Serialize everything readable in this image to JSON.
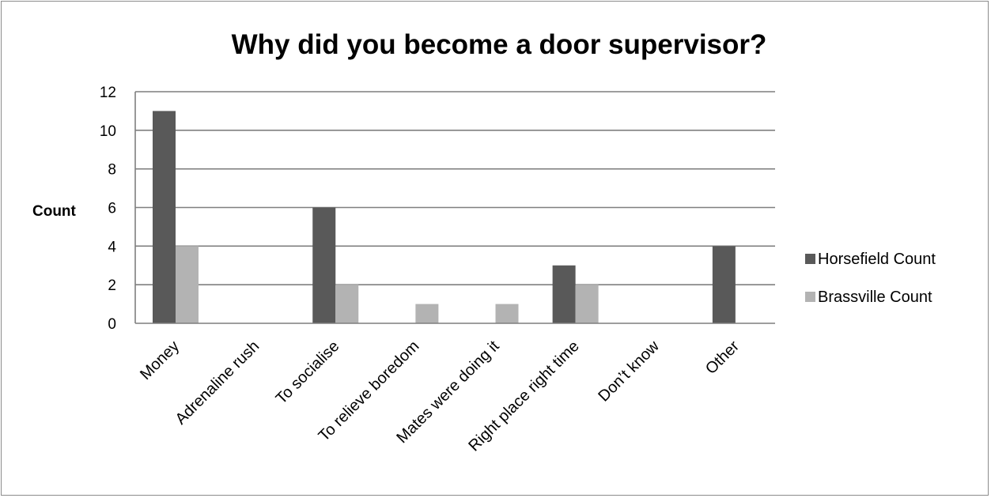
{
  "chart_data": {
    "type": "bar",
    "title": "Why did you become a door supervisor?",
    "xlabel": "",
    "ylabel": "Count",
    "ylim": [
      0,
      12
    ],
    "yticks": [
      0,
      2,
      4,
      6,
      8,
      10,
      12
    ],
    "grid": true,
    "legend_position": "right",
    "categories": [
      "Money",
      "Adrenaline rush",
      "To socialise",
      "To relieve boredom",
      "Mates were doing it",
      "Right place right time",
      "Don’t know",
      "Other"
    ],
    "series": [
      {
        "name": "Horsefield Count",
        "color": "#595959",
        "values": [
          11,
          0,
          6,
          0,
          0,
          3,
          0,
          4
        ]
      },
      {
        "name": "Brassville Count",
        "color": "#b3b3b3",
        "values": [
          4,
          0,
          2,
          1,
          1,
          2,
          0,
          0
        ]
      }
    ]
  }
}
